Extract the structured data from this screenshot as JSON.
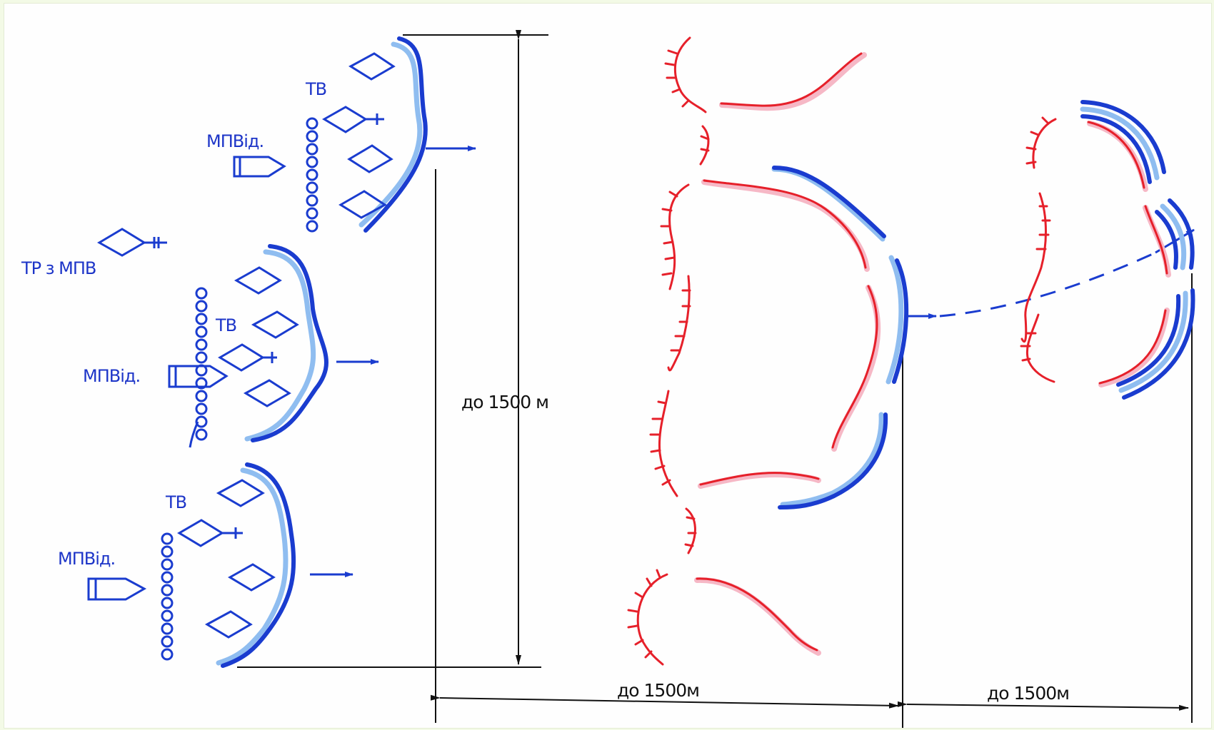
{
  "labels": {
    "tv": "ТВ",
    "mpvid": "МПВід.",
    "tr_mpv": "ТР з МПВ"
  },
  "dimensions": {
    "depth": "до 1500 м",
    "span_first": "до 1500м",
    "span_second": "до 1500м"
  },
  "colors": {
    "own_forces": "#1a3ccf",
    "own_forces_shadow": "#8fbdf0",
    "enemy_positions": "#e6202a",
    "enemy_shadow": "#f6b8c6",
    "dimension_lines": "#111111",
    "page_background": "#fefefe"
  },
  "icons": {
    "tank_platoon": "diamond-icon",
    "commander_tank": "flagged-diamond-icon",
    "ifv_section": "pentagon-vehicle-icon",
    "infantry_column": "circle-chain-icon",
    "advance": "arrow-icon",
    "enemy_trench": "hatched-line-icon"
  }
}
